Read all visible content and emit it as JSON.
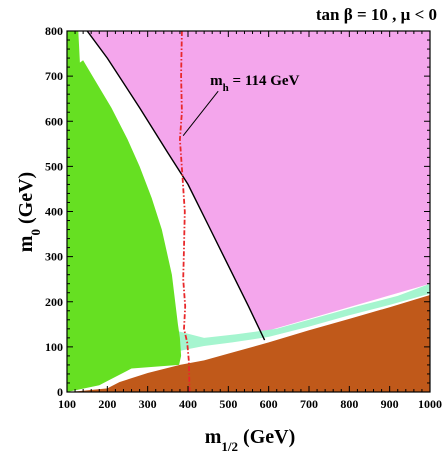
{
  "chart_data": {
    "type": "area",
    "title": "tan β = 10 ,  μ < 0",
    "title_parts": {
      "a": "tan ",
      "b": "β",
      "c": " = 10 ,  ",
      "d": "μ",
      "e": " < 0"
    },
    "xlabel": {
      "main": "m",
      "sub": "1/2",
      "rest": " (GeV)"
    },
    "ylabel": {
      "main": "m",
      "sub": "0",
      "rest": " (GeV)"
    },
    "xlim": [
      100,
      1000
    ],
    "ylim": [
      0,
      800
    ],
    "x_ticks": [
      100,
      200,
      300,
      400,
      500,
      600,
      700,
      800,
      900,
      1000
    ],
    "y_ticks": [
      0,
      100,
      200,
      300,
      400,
      500,
      600,
      700,
      800
    ],
    "x_minor_step": 20,
    "y_minor_step": 20,
    "grid": false,
    "colors": {
      "pink": "#f4a6ec",
      "brown": "#c0591a",
      "green": "#66e022",
      "lightgreen": "#a5f5cf",
      "white": "#ffffff",
      "higgs": "#e8282a",
      "boundary": "#000000"
    },
    "regions": [
      {
        "id": "pink-region",
        "color": "pink",
        "polygon": [
          [
            130,
            800
          ],
          [
            1000,
            800
          ],
          [
            1000,
            240
          ],
          [
            460,
            100
          ],
          [
            130,
            100
          ]
        ]
      },
      {
        "id": "white-region",
        "color": "white",
        "polygon": [
          [
            130,
            800
          ],
          [
            150,
            800
          ],
          [
            200,
            740
          ],
          [
            280,
            630
          ],
          [
            350,
            530
          ],
          [
            400,
            460
          ],
          [
            450,
            370
          ],
          [
            500,
            280
          ],
          [
            550,
            190
          ],
          [
            590,
            115
          ],
          [
            460,
            95
          ],
          [
            130,
            95
          ]
        ]
      },
      {
        "id": "lightgreen-band",
        "color": "lightgreen",
        "polygon": [
          [
            118,
            800
          ],
          [
            128,
            800
          ],
          [
            132,
            560
          ],
          [
            140,
            400
          ],
          [
            145,
            300
          ],
          [
            150,
            240
          ],
          [
            170,
            175
          ],
          [
            220,
            155
          ],
          [
            280,
            145
          ],
          [
            330,
            140
          ],
          [
            375,
            135
          ],
          [
            440,
            120
          ],
          [
            520,
            128
          ],
          [
            620,
            140
          ],
          [
            720,
            165
          ],
          [
            820,
            190
          ],
          [
            920,
            213
          ],
          [
            1000,
            240
          ],
          [
            1000,
            218
          ],
          [
            900,
            193
          ],
          [
            800,
            170
          ],
          [
            700,
            145
          ],
          [
            600,
            122
          ],
          [
            510,
            110
          ],
          [
            440,
            102
          ],
          [
            400,
            95
          ],
          [
            350,
            85
          ],
          [
            300,
            78
          ],
          [
            250,
            74
          ],
          [
            190,
            73
          ],
          [
            155,
            78
          ],
          [
            140,
            100
          ],
          [
            128,
            200
          ],
          [
            122,
            350
          ],
          [
            118,
            600
          ]
        ]
      },
      {
        "id": "green-region",
        "color": "green",
        "polygon": [
          [
            128,
            800
          ],
          [
            132,
            730
          ],
          [
            140,
            735
          ],
          [
            170,
            690
          ],
          [
            210,
            630
          ],
          [
            250,
            560
          ],
          [
            280,
            500
          ],
          [
            310,
            430
          ],
          [
            335,
            360
          ],
          [
            360,
            260
          ],
          [
            375,
            150
          ],
          [
            380,
            120
          ],
          [
            383,
            80
          ],
          [
            378,
            60
          ],
          [
            260,
            52
          ],
          [
            180,
            15
          ],
          [
            100,
            0
          ],
          [
            100,
            800
          ]
        ]
      },
      {
        "id": "brown-region",
        "color": "brown",
        "polygon": [
          [
            100,
            0
          ],
          [
            1000,
            0
          ],
          [
            1000,
            215
          ],
          [
            900,
            188
          ],
          [
            800,
            162
          ],
          [
            700,
            137
          ],
          [
            600,
            110
          ],
          [
            500,
            85
          ],
          [
            440,
            70
          ],
          [
            380,
            60
          ],
          [
            300,
            42
          ],
          [
            230,
            22
          ],
          [
            200,
            8
          ],
          [
            130,
            2
          ]
        ]
      }
    ],
    "boundary_line": [
      [
        150,
        800
      ],
      [
        200,
        740
      ],
      [
        280,
        630
      ],
      [
        350,
        530
      ],
      [
        400,
        460
      ],
      [
        450,
        370
      ],
      [
        500,
        280
      ],
      [
        550,
        190
      ],
      [
        590,
        115
      ]
    ],
    "higgs_contour": [
      [
        385,
        800
      ],
      [
        383,
        700
      ],
      [
        385,
        620
      ],
      [
        380,
        560
      ],
      [
        386,
        480
      ],
      [
        392,
        400
      ],
      [
        390,
        320
      ],
      [
        388,
        250
      ],
      [
        393,
        190
      ],
      [
        390,
        140
      ],
      [
        398,
        110
      ],
      [
        402,
        70
      ],
      [
        404,
        0
      ]
    ],
    "annotations": [
      {
        "id": "mh-label",
        "main": "m",
        "sub": "h",
        "rest": " = 114 GeV",
        "x": 455,
        "y": 680,
        "arrow_to": [
          388,
          568
        ]
      }
    ]
  }
}
